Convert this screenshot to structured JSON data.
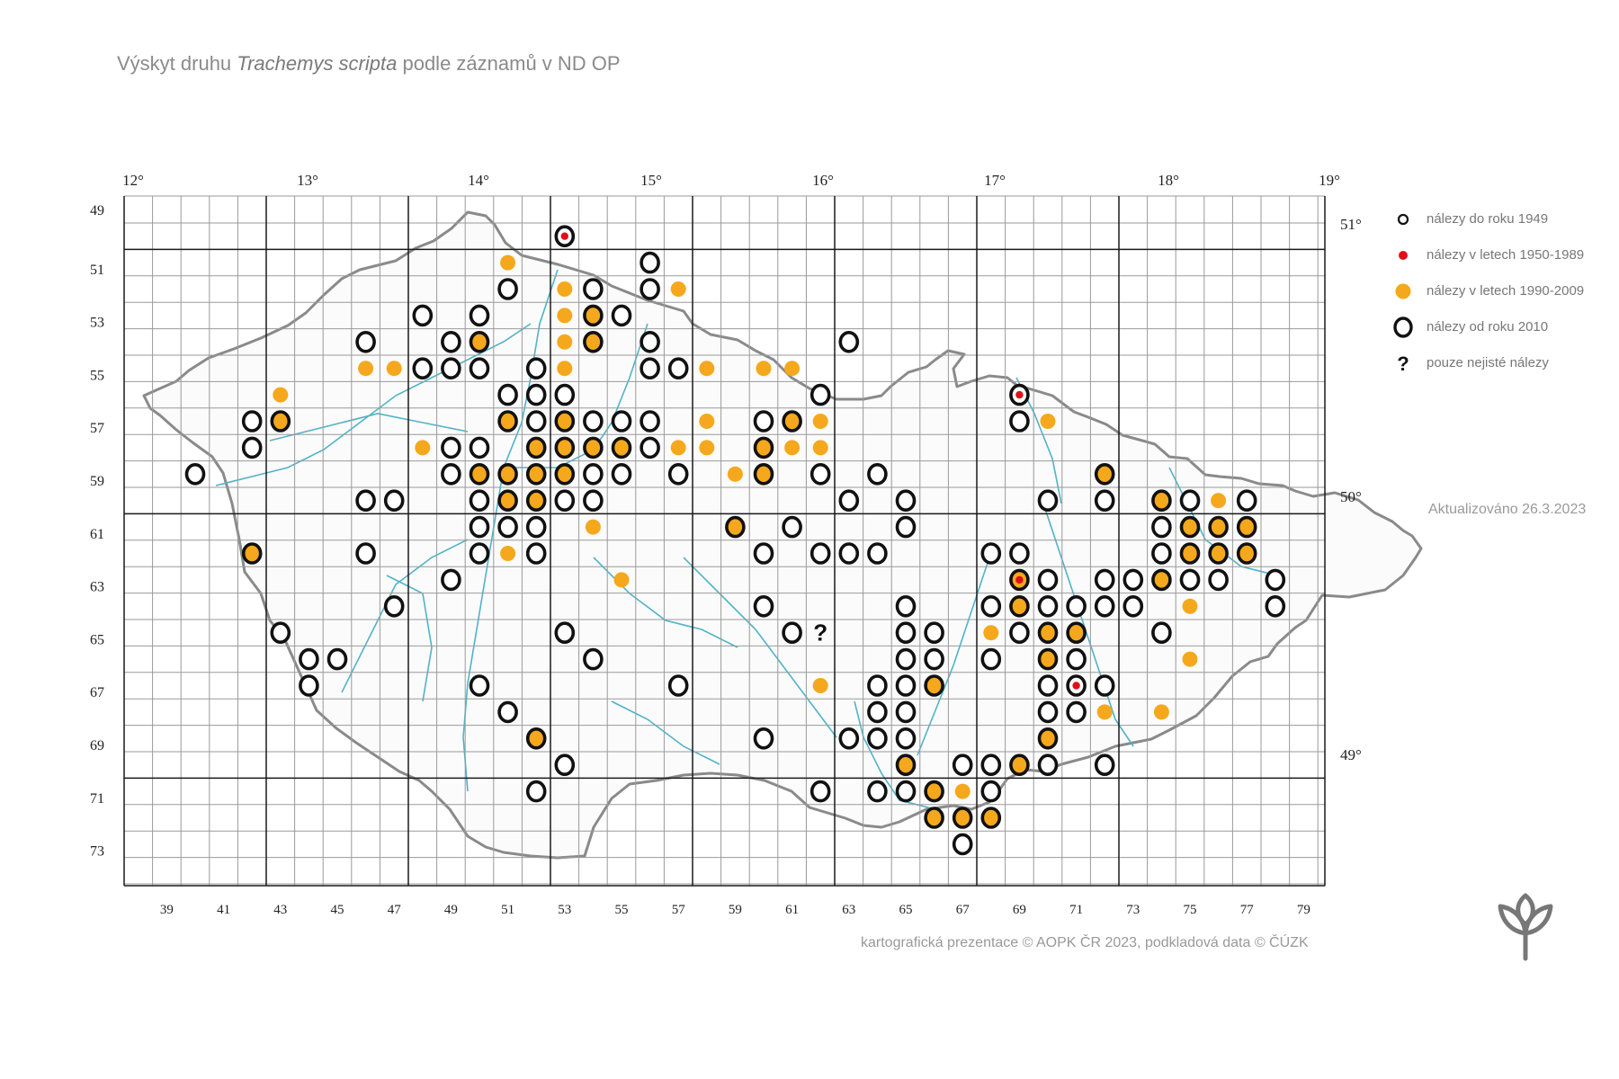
{
  "title": {
    "prefix": "Výskyt druhu ",
    "species": "Trachemys scripta",
    "suffix": " podle záznamů v ND OP"
  },
  "colors": {
    "orange": "#f5a81c",
    "red": "#e0101a",
    "black": "#111111",
    "grid": "#9a9a9a",
    "frame": "#1a1a1a",
    "river": "#4fb3c8",
    "border": "#8a8a8a",
    "text": "#777777"
  },
  "top_axis": [
    "12°",
    "13°",
    "14°",
    "15°",
    "16°",
    "17°",
    "18°",
    "19°"
  ],
  "right_axis": [
    "51°",
    "50°",
    "49°"
  ],
  "left_axis": [
    "49",
    "51",
    "53",
    "55",
    "57",
    "59",
    "61",
    "63",
    "65",
    "67",
    "69",
    "71",
    "73"
  ],
  "bottom_axis": [
    "39",
    "41",
    "43",
    "45",
    "47",
    "49",
    "51",
    "53",
    "55",
    "57",
    "59",
    "61",
    "63",
    "65",
    "67",
    "69",
    "71",
    "73",
    "75",
    "77",
    "79"
  ],
  "legend": [
    {
      "symbol": "small-ring",
      "label": "nálezy do roku 1949"
    },
    {
      "symbol": "red-dot",
      "label": "nálezy v letech 1950-1989"
    },
    {
      "symbol": "orange-dot",
      "label": "nálezy v letech 1990-2009"
    },
    {
      "symbol": "ring",
      "label": "nálezy od roku 2010"
    },
    {
      "symbol": "question",
      "label": "pouze nejisté nálezy"
    }
  ],
  "updated": "Aktualizováno 26.3.2023",
  "credit": "kartografická prezentace © AOPK ČR 2023, podkladová data © ČÚZK",
  "logo_icon": "aopk-leaf-logo-icon",
  "grid": {
    "first_column": 38,
    "last_column": 79,
    "first_row": 49,
    "last_row": 73
  },
  "uncertain_marker": "?",
  "records": [
    {
      "r": 49,
      "c": 53,
      "s": "RR"
    },
    {
      "r": 50,
      "c": 51,
      "s": "O"
    },
    {
      "r": 50,
      "c": 56,
      "s": "R"
    },
    {
      "r": 51,
      "c": 51,
      "s": "R"
    },
    {
      "r": 51,
      "c": 53,
      "s": "O"
    },
    {
      "r": 51,
      "c": 54,
      "s": "R"
    },
    {
      "r": 51,
      "c": 56,
      "s": "R"
    },
    {
      "r": 51,
      "c": 57,
      "s": "O"
    },
    {
      "r": 52,
      "c": 48,
      "s": "R"
    },
    {
      "r": 52,
      "c": 50,
      "s": "R"
    },
    {
      "r": 52,
      "c": 53,
      "s": "O"
    },
    {
      "r": 52,
      "c": 54,
      "s": "RO"
    },
    {
      "r": 52,
      "c": 55,
      "s": "R"
    },
    {
      "r": 53,
      "c": 46,
      "s": "R"
    },
    {
      "r": 53,
      "c": 49,
      "s": "R"
    },
    {
      "r": 53,
      "c": 50,
      "s": "RO"
    },
    {
      "r": 53,
      "c": 53,
      "s": "O"
    },
    {
      "r": 53,
      "c": 54,
      "s": "RO"
    },
    {
      "r": 53,
      "c": 56,
      "s": "R"
    },
    {
      "r": 53,
      "c": 63,
      "s": "R"
    },
    {
      "r": 54,
      "c": 46,
      "s": "O"
    },
    {
      "r": 54,
      "c": 47,
      "s": "O"
    },
    {
      "r": 54,
      "c": 48,
      "s": "R"
    },
    {
      "r": 54,
      "c": 49,
      "s": "R"
    },
    {
      "r": 54,
      "c": 50,
      "s": "R"
    },
    {
      "r": 54,
      "c": 52,
      "s": "R"
    },
    {
      "r": 54,
      "c": 53,
      "s": "O"
    },
    {
      "r": 54,
      "c": 56,
      "s": "R"
    },
    {
      "r": 54,
      "c": 57,
      "s": "R"
    },
    {
      "r": 54,
      "c": 58,
      "s": "O"
    },
    {
      "r": 54,
      "c": 60,
      "s": "O"
    },
    {
      "r": 54,
      "c": 61,
      "s": "O"
    },
    {
      "r": 55,
      "c": 43,
      "s": "O"
    },
    {
      "r": 55,
      "c": 51,
      "s": "R"
    },
    {
      "r": 55,
      "c": 52,
      "s": "R"
    },
    {
      "r": 55,
      "c": 53,
      "s": "R"
    },
    {
      "r": 55,
      "c": 62,
      "s": "R"
    },
    {
      "r": 55,
      "c": 69,
      "s": "RR"
    },
    {
      "r": 56,
      "c": 42,
      "s": "R"
    },
    {
      "r": 56,
      "c": 43,
      "s": "RO"
    },
    {
      "r": 56,
      "c": 51,
      "s": "RO"
    },
    {
      "r": 56,
      "c": 52,
      "s": "R"
    },
    {
      "r": 56,
      "c": 53,
      "s": "RO"
    },
    {
      "r": 56,
      "c": 54,
      "s": "R"
    },
    {
      "r": 56,
      "c": 55,
      "s": "R"
    },
    {
      "r": 56,
      "c": 56,
      "s": "R"
    },
    {
      "r": 56,
      "c": 58,
      "s": "O"
    },
    {
      "r": 56,
      "c": 60,
      "s": "R"
    },
    {
      "r": 56,
      "c": 61,
      "s": "RO"
    },
    {
      "r": 56,
      "c": 62,
      "s": "O"
    },
    {
      "r": 56,
      "c": 69,
      "s": "R"
    },
    {
      "r": 56,
      "c": 70,
      "s": "O"
    },
    {
      "r": 57,
      "c": 42,
      "s": "R"
    },
    {
      "r": 57,
      "c": 48,
      "s": "O"
    },
    {
      "r": 57,
      "c": 49,
      "s": "R"
    },
    {
      "r": 57,
      "c": 50,
      "s": "R"
    },
    {
      "r": 57,
      "c": 52,
      "s": "RO"
    },
    {
      "r": 57,
      "c": 53,
      "s": "RO"
    },
    {
      "r": 57,
      "c": 54,
      "s": "RO"
    },
    {
      "r": 57,
      "c": 55,
      "s": "RO"
    },
    {
      "r": 57,
      "c": 56,
      "s": "R"
    },
    {
      "r": 57,
      "c": 57,
      "s": "O"
    },
    {
      "r": 57,
      "c": 58,
      "s": "O"
    },
    {
      "r": 57,
      "c": 60,
      "s": "RO"
    },
    {
      "r": 57,
      "c": 61,
      "s": "O"
    },
    {
      "r": 57,
      "c": 62,
      "s": "O"
    },
    {
      "r": 58,
      "c": 40,
      "s": "R"
    },
    {
      "r": 58,
      "c": 49,
      "s": "R"
    },
    {
      "r": 58,
      "c": 50,
      "s": "RO"
    },
    {
      "r": 58,
      "c": 51,
      "s": "RO"
    },
    {
      "r": 58,
      "c": 52,
      "s": "RO"
    },
    {
      "r": 58,
      "c": 53,
      "s": "RO"
    },
    {
      "r": 58,
      "c": 54,
      "s": "R"
    },
    {
      "r": 58,
      "c": 55,
      "s": "R"
    },
    {
      "r": 58,
      "c": 57,
      "s": "R"
    },
    {
      "r": 58,
      "c": 59,
      "s": "O"
    },
    {
      "r": 58,
      "c": 60,
      "s": "RO"
    },
    {
      "r": 58,
      "c": 62,
      "s": "R"
    },
    {
      "r": 58,
      "c": 64,
      "s": "R"
    },
    {
      "r": 58,
      "c": 72,
      "s": "RO"
    },
    {
      "r": 59,
      "c": 46,
      "s": "R"
    },
    {
      "r": 59,
      "c": 47,
      "s": "R"
    },
    {
      "r": 59,
      "c": 50,
      "s": "R"
    },
    {
      "r": 59,
      "c": 51,
      "s": "RO"
    },
    {
      "r": 59,
      "c": 52,
      "s": "RO"
    },
    {
      "r": 59,
      "c": 53,
      "s": "R"
    },
    {
      "r": 59,
      "c": 54,
      "s": "R"
    },
    {
      "r": 59,
      "c": 63,
      "s": "R"
    },
    {
      "r": 59,
      "c": 65,
      "s": "R"
    },
    {
      "r": 59,
      "c": 70,
      "s": "R"
    },
    {
      "r": 59,
      "c": 72,
      "s": "R"
    },
    {
      "r": 59,
      "c": 74,
      "s": "RO"
    },
    {
      "r": 59,
      "c": 75,
      "s": "R"
    },
    {
      "r": 59,
      "c": 76,
      "s": "O"
    },
    {
      "r": 59,
      "c": 77,
      "s": "R"
    },
    {
      "r": 60,
      "c": 50,
      "s": "R"
    },
    {
      "r": 60,
      "c": 51,
      "s": "R"
    },
    {
      "r": 60,
      "c": 52,
      "s": "R"
    },
    {
      "r": 60,
      "c": 54,
      "s": "O"
    },
    {
      "r": 60,
      "c": 59,
      "s": "RO"
    },
    {
      "r": 60,
      "c": 61,
      "s": "R"
    },
    {
      "r": 60,
      "c": 65,
      "s": "R"
    },
    {
      "r": 60,
      "c": 74,
      "s": "R"
    },
    {
      "r": 60,
      "c": 75,
      "s": "RO"
    },
    {
      "r": 60,
      "c": 76,
      "s": "RO"
    },
    {
      "r": 60,
      "c": 77,
      "s": "RO"
    },
    {
      "r": 61,
      "c": 42,
      "s": "RO"
    },
    {
      "r": 61,
      "c": 46,
      "s": "R"
    },
    {
      "r": 61,
      "c": 50,
      "s": "R"
    },
    {
      "r": 61,
      "c": 51,
      "s": "O"
    },
    {
      "r": 61,
      "c": 52,
      "s": "R"
    },
    {
      "r": 61,
      "c": 60,
      "s": "R"
    },
    {
      "r": 61,
      "c": 62,
      "s": "R"
    },
    {
      "r": 61,
      "c": 63,
      "s": "R"
    },
    {
      "r": 61,
      "c": 64,
      "s": "R"
    },
    {
      "r": 61,
      "c": 68,
      "s": "R"
    },
    {
      "r": 61,
      "c": 69,
      "s": "R"
    },
    {
      "r": 61,
      "c": 74,
      "s": "R"
    },
    {
      "r": 61,
      "c": 75,
      "s": "RO"
    },
    {
      "r": 61,
      "c": 76,
      "s": "RO"
    },
    {
      "r": 61,
      "c": 77,
      "s": "RO"
    },
    {
      "r": 62,
      "c": 49,
      "s": "R"
    },
    {
      "r": 62,
      "c": 55,
      "s": "O"
    },
    {
      "r": 62,
      "c": 69,
      "s": "RRO"
    },
    {
      "r": 62,
      "c": 70,
      "s": "R"
    },
    {
      "r": 62,
      "c": 72,
      "s": "R"
    },
    {
      "r": 62,
      "c": 73,
      "s": "R"
    },
    {
      "r": 62,
      "c": 74,
      "s": "RO"
    },
    {
      "r": 62,
      "c": 75,
      "s": "R"
    },
    {
      "r": 62,
      "c": 76,
      "s": "R"
    },
    {
      "r": 62,
      "c": 78,
      "s": "R"
    },
    {
      "r": 63,
      "c": 47,
      "s": "R"
    },
    {
      "r": 63,
      "c": 60,
      "s": "R"
    },
    {
      "r": 63,
      "c": 65,
      "s": "R"
    },
    {
      "r": 63,
      "c": 68,
      "s": "R"
    },
    {
      "r": 63,
      "c": 69,
      "s": "RO"
    },
    {
      "r": 63,
      "c": 70,
      "s": "R"
    },
    {
      "r": 63,
      "c": 71,
      "s": "R"
    },
    {
      "r": 63,
      "c": 72,
      "s": "R"
    },
    {
      "r": 63,
      "c": 73,
      "s": "R"
    },
    {
      "r": 63,
      "c": 75,
      "s": "O"
    },
    {
      "r": 63,
      "c": 78,
      "s": "R"
    },
    {
      "r": 64,
      "c": 43,
      "s": "R"
    },
    {
      "r": 64,
      "c": 53,
      "s": "R"
    },
    {
      "r": 64,
      "c": 61,
      "s": "R"
    },
    {
      "r": 64,
      "c": 62,
      "s": "Q"
    },
    {
      "r": 64,
      "c": 65,
      "s": "R"
    },
    {
      "r": 64,
      "c": 66,
      "s": "R"
    },
    {
      "r": 64,
      "c": 68,
      "s": "O"
    },
    {
      "r": 64,
      "c": 69,
      "s": "R"
    },
    {
      "r": 64,
      "c": 70,
      "s": "RO"
    },
    {
      "r": 64,
      "c": 71,
      "s": "RO"
    },
    {
      "r": 64,
      "c": 74,
      "s": "R"
    },
    {
      "r": 65,
      "c": 44,
      "s": "R"
    },
    {
      "r": 65,
      "c": 45,
      "s": "R"
    },
    {
      "r": 65,
      "c": 54,
      "s": "R"
    },
    {
      "r": 65,
      "c": 65,
      "s": "R"
    },
    {
      "r": 65,
      "c": 66,
      "s": "R"
    },
    {
      "r": 65,
      "c": 68,
      "s": "R"
    },
    {
      "r": 65,
      "c": 70,
      "s": "RO"
    },
    {
      "r": 65,
      "c": 71,
      "s": "R"
    },
    {
      "r": 65,
      "c": 75,
      "s": "O"
    },
    {
      "r": 66,
      "c": 44,
      "s": "R"
    },
    {
      "r": 66,
      "c": 50,
      "s": "R"
    },
    {
      "r": 66,
      "c": 57,
      "s": "R"
    },
    {
      "r": 66,
      "c": 62,
      "s": "O"
    },
    {
      "r": 66,
      "c": 64,
      "s": "R"
    },
    {
      "r": 66,
      "c": 65,
      "s": "R"
    },
    {
      "r": 66,
      "c": 66,
      "s": "RO"
    },
    {
      "r": 66,
      "c": 70,
      "s": "R"
    },
    {
      "r": 66,
      "c": 71,
      "s": "RR"
    },
    {
      "r": 66,
      "c": 72,
      "s": "R"
    },
    {
      "r": 67,
      "c": 51,
      "s": "R"
    },
    {
      "r": 67,
      "c": 64,
      "s": "R"
    },
    {
      "r": 67,
      "c": 65,
      "s": "R"
    },
    {
      "r": 67,
      "c": 70,
      "s": "R"
    },
    {
      "r": 67,
      "c": 71,
      "s": "R"
    },
    {
      "r": 67,
      "c": 72,
      "s": "O"
    },
    {
      "r": 67,
      "c": 74,
      "s": "O"
    },
    {
      "r": 68,
      "c": 52,
      "s": "RO"
    },
    {
      "r": 68,
      "c": 60,
      "s": "R"
    },
    {
      "r": 68,
      "c": 63,
      "s": "R"
    },
    {
      "r": 68,
      "c": 64,
      "s": "R"
    },
    {
      "r": 68,
      "c": 65,
      "s": "R"
    },
    {
      "r": 68,
      "c": 70,
      "s": "RO"
    },
    {
      "r": 69,
      "c": 53,
      "s": "R"
    },
    {
      "r": 69,
      "c": 65,
      "s": "RO"
    },
    {
      "r": 69,
      "c": 67,
      "s": "R"
    },
    {
      "r": 69,
      "c": 68,
      "s": "R"
    },
    {
      "r": 69,
      "c": 69,
      "s": "RO"
    },
    {
      "r": 69,
      "c": 70,
      "s": "R"
    },
    {
      "r": 69,
      "c": 72,
      "s": "R"
    },
    {
      "r": 70,
      "c": 52,
      "s": "R"
    },
    {
      "r": 70,
      "c": 62,
      "s": "R"
    },
    {
      "r": 70,
      "c": 64,
      "s": "R"
    },
    {
      "r": 70,
      "c": 65,
      "s": "R"
    },
    {
      "r": 70,
      "c": 66,
      "s": "RO"
    },
    {
      "r": 70,
      "c": 67,
      "s": "O"
    },
    {
      "r": 70,
      "c": 68,
      "s": "R"
    },
    {
      "r": 71,
      "c": 66,
      "s": "RO"
    },
    {
      "r": 71,
      "c": 67,
      "s": "RO"
    },
    {
      "r": 71,
      "c": 68,
      "s": "RO"
    },
    {
      "r": 72,
      "c": 67,
      "s": "R"
    }
  ]
}
